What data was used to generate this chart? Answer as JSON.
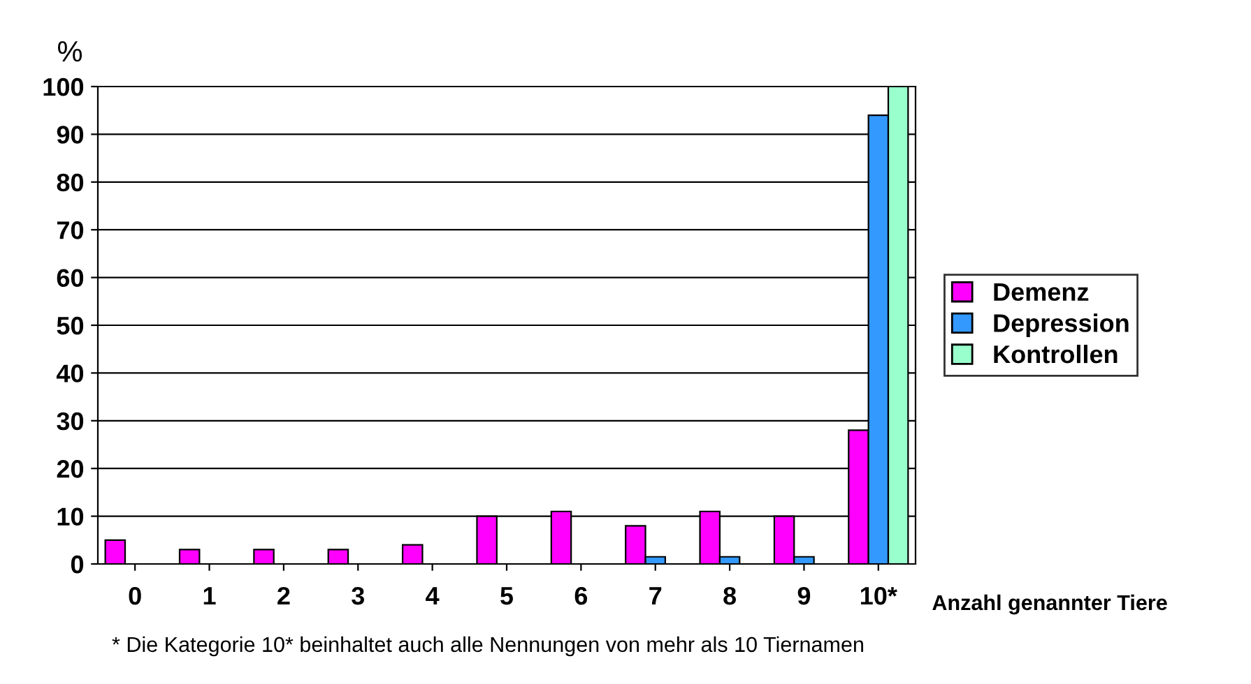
{
  "chart_data": {
    "type": "bar",
    "categories": [
      "0",
      "1",
      "2",
      "3",
      "4",
      "5",
      "6",
      "7",
      "8",
      "9",
      "10*"
    ],
    "series": [
      {
        "name": "Demenz",
        "color": "#ff00ff",
        "values": [
          5,
          3,
          3,
          3,
          4,
          10,
          11,
          8,
          11,
          10,
          28
        ]
      },
      {
        "name": "Depression",
        "color": "#3399ff",
        "values": [
          null,
          null,
          null,
          null,
          null,
          null,
          null,
          1.5,
          1.5,
          1.5,
          94
        ]
      },
      {
        "name": "Kontrollen",
        "color": "#99ffcc",
        "values": [
          null,
          null,
          null,
          null,
          null,
          null,
          null,
          null,
          null,
          null,
          100
        ]
      }
    ],
    "ylabel": "%",
    "xlabel": "Anzahl genannter Tiere",
    "ylim": [
      0,
      100
    ],
    "yticks": [
      0,
      10,
      20,
      30,
      40,
      50,
      60,
      70,
      80,
      90,
      100
    ],
    "grid": "y",
    "legend": "right",
    "annotations": [
      "* Die Kategorie 10* beinhaltet auch alle Nennungen von mehr als 10 Tiernamen"
    ]
  }
}
